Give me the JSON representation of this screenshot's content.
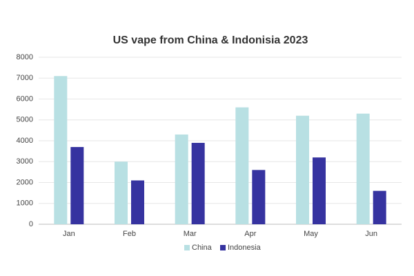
{
  "chart_data": {
    "type": "bar",
    "title": "US vape from China & Indonisia 2023",
    "categories": [
      "Jan",
      "Feb",
      "Mar",
      "Apr",
      "May",
      "Jun"
    ],
    "series": [
      {
        "name": "China",
        "color": "#b8e0e3",
        "values": [
          7100,
          3000,
          4300,
          5600,
          5200,
          5300
        ]
      },
      {
        "name": "Indonesia",
        "color": "#3633a0",
        "values": [
          3700,
          2100,
          3900,
          2600,
          3200,
          1600
        ]
      }
    ],
    "ylim": [
      0,
      8000
    ],
    "yticks": [
      0,
      1000,
      2000,
      3000,
      4000,
      5000,
      6000,
      7000,
      8000
    ],
    "grid": true,
    "legend": "bottom"
  }
}
